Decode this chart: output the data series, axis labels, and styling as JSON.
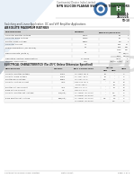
{
  "bg_color": "#f0f0f0",
  "page_bg": "#ffffff",
  "header_company": "Continental Device India Limited",
  "header_title": "NPN SILICON PLANAR SWITCHING TRANSISTORS",
  "subtitle": "Switching and Linear Application  DC and VHF Amplifier Applications",
  "abs_max_title": "ABSOLUTE MAXIMUM RATINGS",
  "elec_char_title": "ELECTRICAL CHARACTERISTICS (Ta=25°C Unless Otherwise Specified)",
  "footer_left": "Continental Device India Limited",
  "footer_mid": "Data Sheet",
  "footer_right": "Page 1 of 3",
  "triangle_color": "#e8f0f8",
  "header_line_color": "#bbbbbb",
  "text_color": "#444444",
  "text_dark": "#222222",
  "table_header_bg": "#d8d8d8",
  "table_row_alt": "#f7f7f7",
  "table_line_color": "#cccccc",
  "logo_bg1": "#3a6ea8",
  "logo_bg2": "#5a8a5a",
  "part_color": "#333333",
  "abs_max_rows": [
    [
      "Collector Emitter Voltage",
      "VCEO",
      "40",
      "V"
    ],
    [
      "Collector Base Voltage",
      "VCBO",
      "75",
      "V"
    ],
    [
      "Emitter Base Voltage",
      "VEBO",
      "6.0",
      "V"
    ],
    [
      "Collector Current",
      "IC",
      "600",
      "mA"
    ],
    [
      "Power Dissipation (TO-18 Pkg)",
      "PD",
      "500",
      "mW"
    ],
    [
      "",
      "",
      "1125",
      "mW"
    ],
    [
      "Device Derate (Note 1)",
      "PD",
      "4.5",
      "mW/°C"
    ],
    [
      "",
      "",
      "4.50",
      "mW/°C"
    ],
    [
      "Operating Junction Temperature",
      "TJ Tmax",
      "+200",
      "°C"
    ],
    [
      "Storage Temperature",
      "Tstg",
      "-65 to +200",
      "°C"
    ]
  ],
  "elec_rows": [
    [
      "Collector Emitter Voltage",
      "VCEO",
      "IC=10mA, IB=0",
      "40",
      "-",
      "V"
    ],
    [
      "Collector Base Voltage",
      "VCBO",
      "IC=10uA, IB=0",
      "75",
      "-",
      "V"
    ],
    [
      "Emitter Base Voltage",
      "VEBO",
      "IE=10uA, IC=0",
      "6.0",
      "-",
      "V"
    ],
    [
      "Collector Cut-off Current",
      "ICBO",
      "VCB=60V, IE=0",
      "-",
      "10",
      "nA"
    ],
    [
      "",
      "",
      "TCASE=150°C",
      "",
      "35",
      "nA"
    ],
    [
      "Emitter Cut-off Current",
      "IEBO",
      "VEB=3V, IC=0",
      "-",
      "10",
      "nA"
    ],
    [
      "Base Cut-off Current",
      "IBL",
      "VCE=6V, IC=0",
      "-",
      "",
      "nA"
    ],
    [
      "Collector Emitter Sat. Voltage",
      "VCE(sat)",
      "IC=150mA, IB=15mA",
      "-",
      "0.3",
      "V"
    ],
    [
      "",
      "",
      "IC=500mA, IB=50mA",
      "-",
      "1.0",
      "V"
    ],
    [
      "Base Emitter Sat. Voltage",
      "VBE(sat)",
      "IC=150mA, IB=15mA",
      "0.6",
      "1.3",
      "V"
    ],
    [
      "",
      "",
      "IC=500mA, IB=50mA",
      "",
      "2.0",
      "V"
    ]
  ]
}
